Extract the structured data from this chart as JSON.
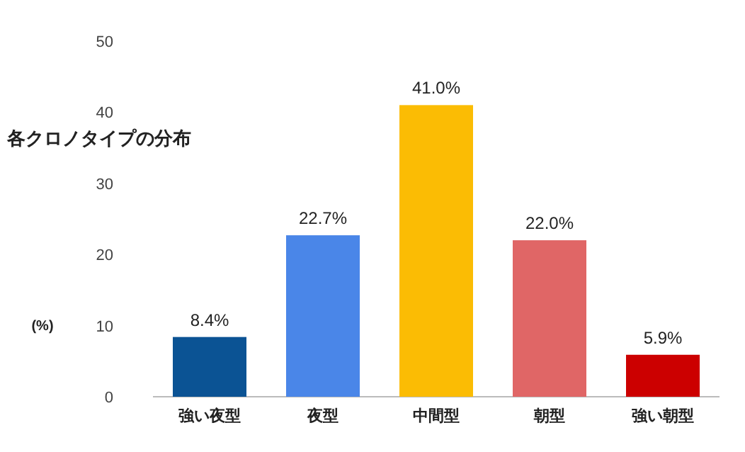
{
  "chart_data": {
    "type": "bar",
    "ylabel": "各クロノタイプの分布 (%)",
    "categories": [
      "強い夜型",
      "夜型",
      "中間型",
      "朝型",
      "強い朝型"
    ],
    "values": [
      8.4,
      22.7,
      41.0,
      22.0,
      5.9
    ],
    "colors": [
      "#0b5394",
      "#4a86e8",
      "#fbbc04",
      "#e06666",
      "#cc0000"
    ],
    "value_labels": [
      "8.4%",
      "22.7%",
      "41.0%",
      "22.0%",
      "5.9%"
    ],
    "ylim": [
      0,
      50
    ],
    "yticks": [
      0,
      10,
      20,
      30,
      40,
      50
    ],
    "grid": false
  }
}
